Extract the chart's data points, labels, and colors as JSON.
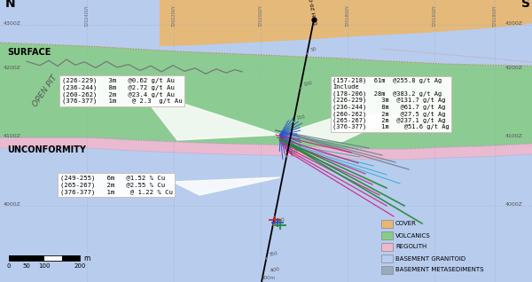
{
  "bg_color": "#c8d5e8",
  "cover_color": "#e8b870",
  "volcanics_color": "#88cc88",
  "regolith_color": "#f0b8cc",
  "basement_granitoid_color": "#b8ccee",
  "basement_meta_color": "#9aabbb",
  "legend_items": [
    "COVER",
    "VOLCANICS",
    "REGOLITH",
    "BASEMENT GRANITOID",
    "BASEMENT METASEDIMENTS"
  ],
  "legend_colors": [
    "#e8b870",
    "#88cc88",
    "#f0b8cc",
    "#b8ccee",
    "#9aabbb"
  ],
  "au_lines": [
    "(226-229)   3m   @0.62 g/t Au",
    "(236-244)   8m   @2.72 g/t Au",
    "(260-262)   2m   @23.4 g/t Au",
    "(376-377)   1m    @ 2.3  g/t Au"
  ],
  "ag_lines": [
    "(157-218)  61m  @255.8 g/t Ag",
    "Include",
    "(178-206)  28m  @383.2 g/t Ag",
    "(226-229)    3m  @131.7 g/t Ag",
    "(236-244)    8m   @61.7 g/t Ag",
    "(260-262)    2m   @27.5 g/t Ag",
    "(265-267)    2m  @237.1 g/t Ag",
    "(376-377)    1m    @51.6 g/t Ag"
  ],
  "cu_lines": [
    "(249-255)   6m   @1.52 % Cu",
    "(265-267)   2m   @2.55 % Cu",
    "(376-377)   1m    @ 1.22 % Cu"
  ],
  "north_label": "N",
  "south_label": "S",
  "surface_label": "SURFACE",
  "open_pit_label": "OPEN PIT",
  "unconformity_label": "UNCONFORMITY",
  "elev_labels_left": [
    "4300Z",
    "4200Z",
    "4100Z",
    "4000Z"
  ],
  "elev_labels_right": [
    "4300Z",
    "4200Z",
    "4100Z",
    "4000Z"
  ],
  "easting_labels": [
    "7202400Y",
    "7202200Y",
    "7202000Y",
    "7201800Y",
    "7201600Y"
  ],
  "scalebar_ticks": [
    "0",
    "50",
    "100",
    "200"
  ],
  "scalebar_unit": "m"
}
